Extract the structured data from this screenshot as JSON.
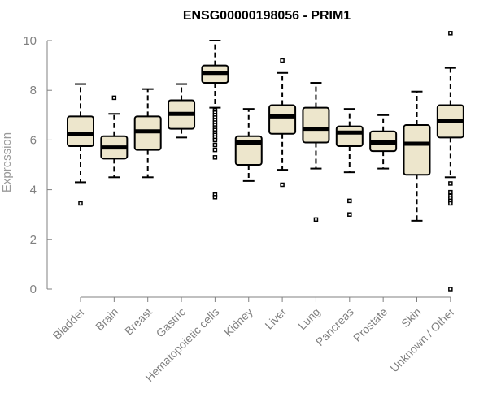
{
  "chart_data": {
    "type": "boxplot",
    "title": "ENSG00000198056 - PRIM1",
    "ylabel": "Expression",
    "xlabel": "",
    "ylim": [
      0,
      10
    ],
    "yticks": [
      0,
      2,
      4,
      6,
      8,
      10
    ],
    "box_color": "#ede6cc",
    "categories": [
      "Bladder",
      "Brain",
      "Breast",
      "Gastric",
      "Hematopoietic cells",
      "Kidney",
      "Liver",
      "Lung",
      "Pancreas",
      "Prostate",
      "Skin",
      "Unknown / Other"
    ],
    "boxes": [
      {
        "category": "Bladder",
        "whisker_low": 4.3,
        "q1": 5.75,
        "median": 6.25,
        "q3": 6.95,
        "whisker_high": 8.25,
        "outliers": [
          3.45
        ]
      },
      {
        "category": "Brain",
        "whisker_low": 4.5,
        "q1": 5.25,
        "median": 5.7,
        "q3": 6.15,
        "whisker_high": 7.05,
        "outliers": [
          7.7
        ]
      },
      {
        "category": "Breast",
        "whisker_low": 4.5,
        "q1": 5.6,
        "median": 6.35,
        "q3": 6.95,
        "whisker_high": 8.05,
        "outliers": []
      },
      {
        "category": "Gastric",
        "whisker_low": 6.1,
        "q1": 6.45,
        "median": 7.05,
        "q3": 7.6,
        "whisker_high": 8.25,
        "outliers": []
      },
      {
        "category": "Hematopoietic cells",
        "whisker_low": 7.3,
        "q1": 8.3,
        "median": 8.7,
        "q3": 9.0,
        "whisker_high": 10.0,
        "outliers": [
          7.2,
          7.1,
          7.0,
          6.9,
          6.8,
          6.7,
          6.6,
          6.5,
          6.4,
          6.3,
          6.2,
          6.1,
          6.0,
          5.8,
          5.6,
          5.3,
          3.8,
          3.7
        ]
      },
      {
        "category": "Kidney",
        "whisker_low": 4.35,
        "q1": 5.0,
        "median": 5.9,
        "q3": 6.15,
        "whisker_high": 7.25,
        "outliers": []
      },
      {
        "category": "Liver",
        "whisker_low": 4.8,
        "q1": 6.25,
        "median": 6.95,
        "q3": 7.4,
        "whisker_high": 8.7,
        "outliers": [
          9.2,
          4.2
        ]
      },
      {
        "category": "Lung",
        "whisker_low": 4.85,
        "q1": 5.9,
        "median": 6.45,
        "q3": 7.3,
        "whisker_high": 8.3,
        "outliers": [
          2.8
        ]
      },
      {
        "category": "Pancreas",
        "whisker_low": 4.7,
        "q1": 5.75,
        "median": 6.3,
        "q3": 6.55,
        "whisker_high": 7.25,
        "outliers": [
          3.55,
          3.0
        ]
      },
      {
        "category": "Prostate",
        "whisker_low": 4.85,
        "q1": 5.55,
        "median": 5.9,
        "q3": 6.35,
        "whisker_high": 7.0,
        "outliers": []
      },
      {
        "category": "Skin",
        "whisker_low": 2.75,
        "q1": 4.6,
        "median": 5.85,
        "q3": 6.6,
        "whisker_high": 7.95,
        "outliers": []
      },
      {
        "category": "Unknown / Other",
        "whisker_low": 4.5,
        "q1": 6.1,
        "median": 6.75,
        "q3": 7.4,
        "whisker_high": 8.9,
        "outliers": [
          10.3,
          4.25,
          3.9,
          3.75,
          3.65,
          3.55,
          3.45,
          0.0
        ]
      }
    ],
    "grid": false,
    "legend": "none"
  }
}
